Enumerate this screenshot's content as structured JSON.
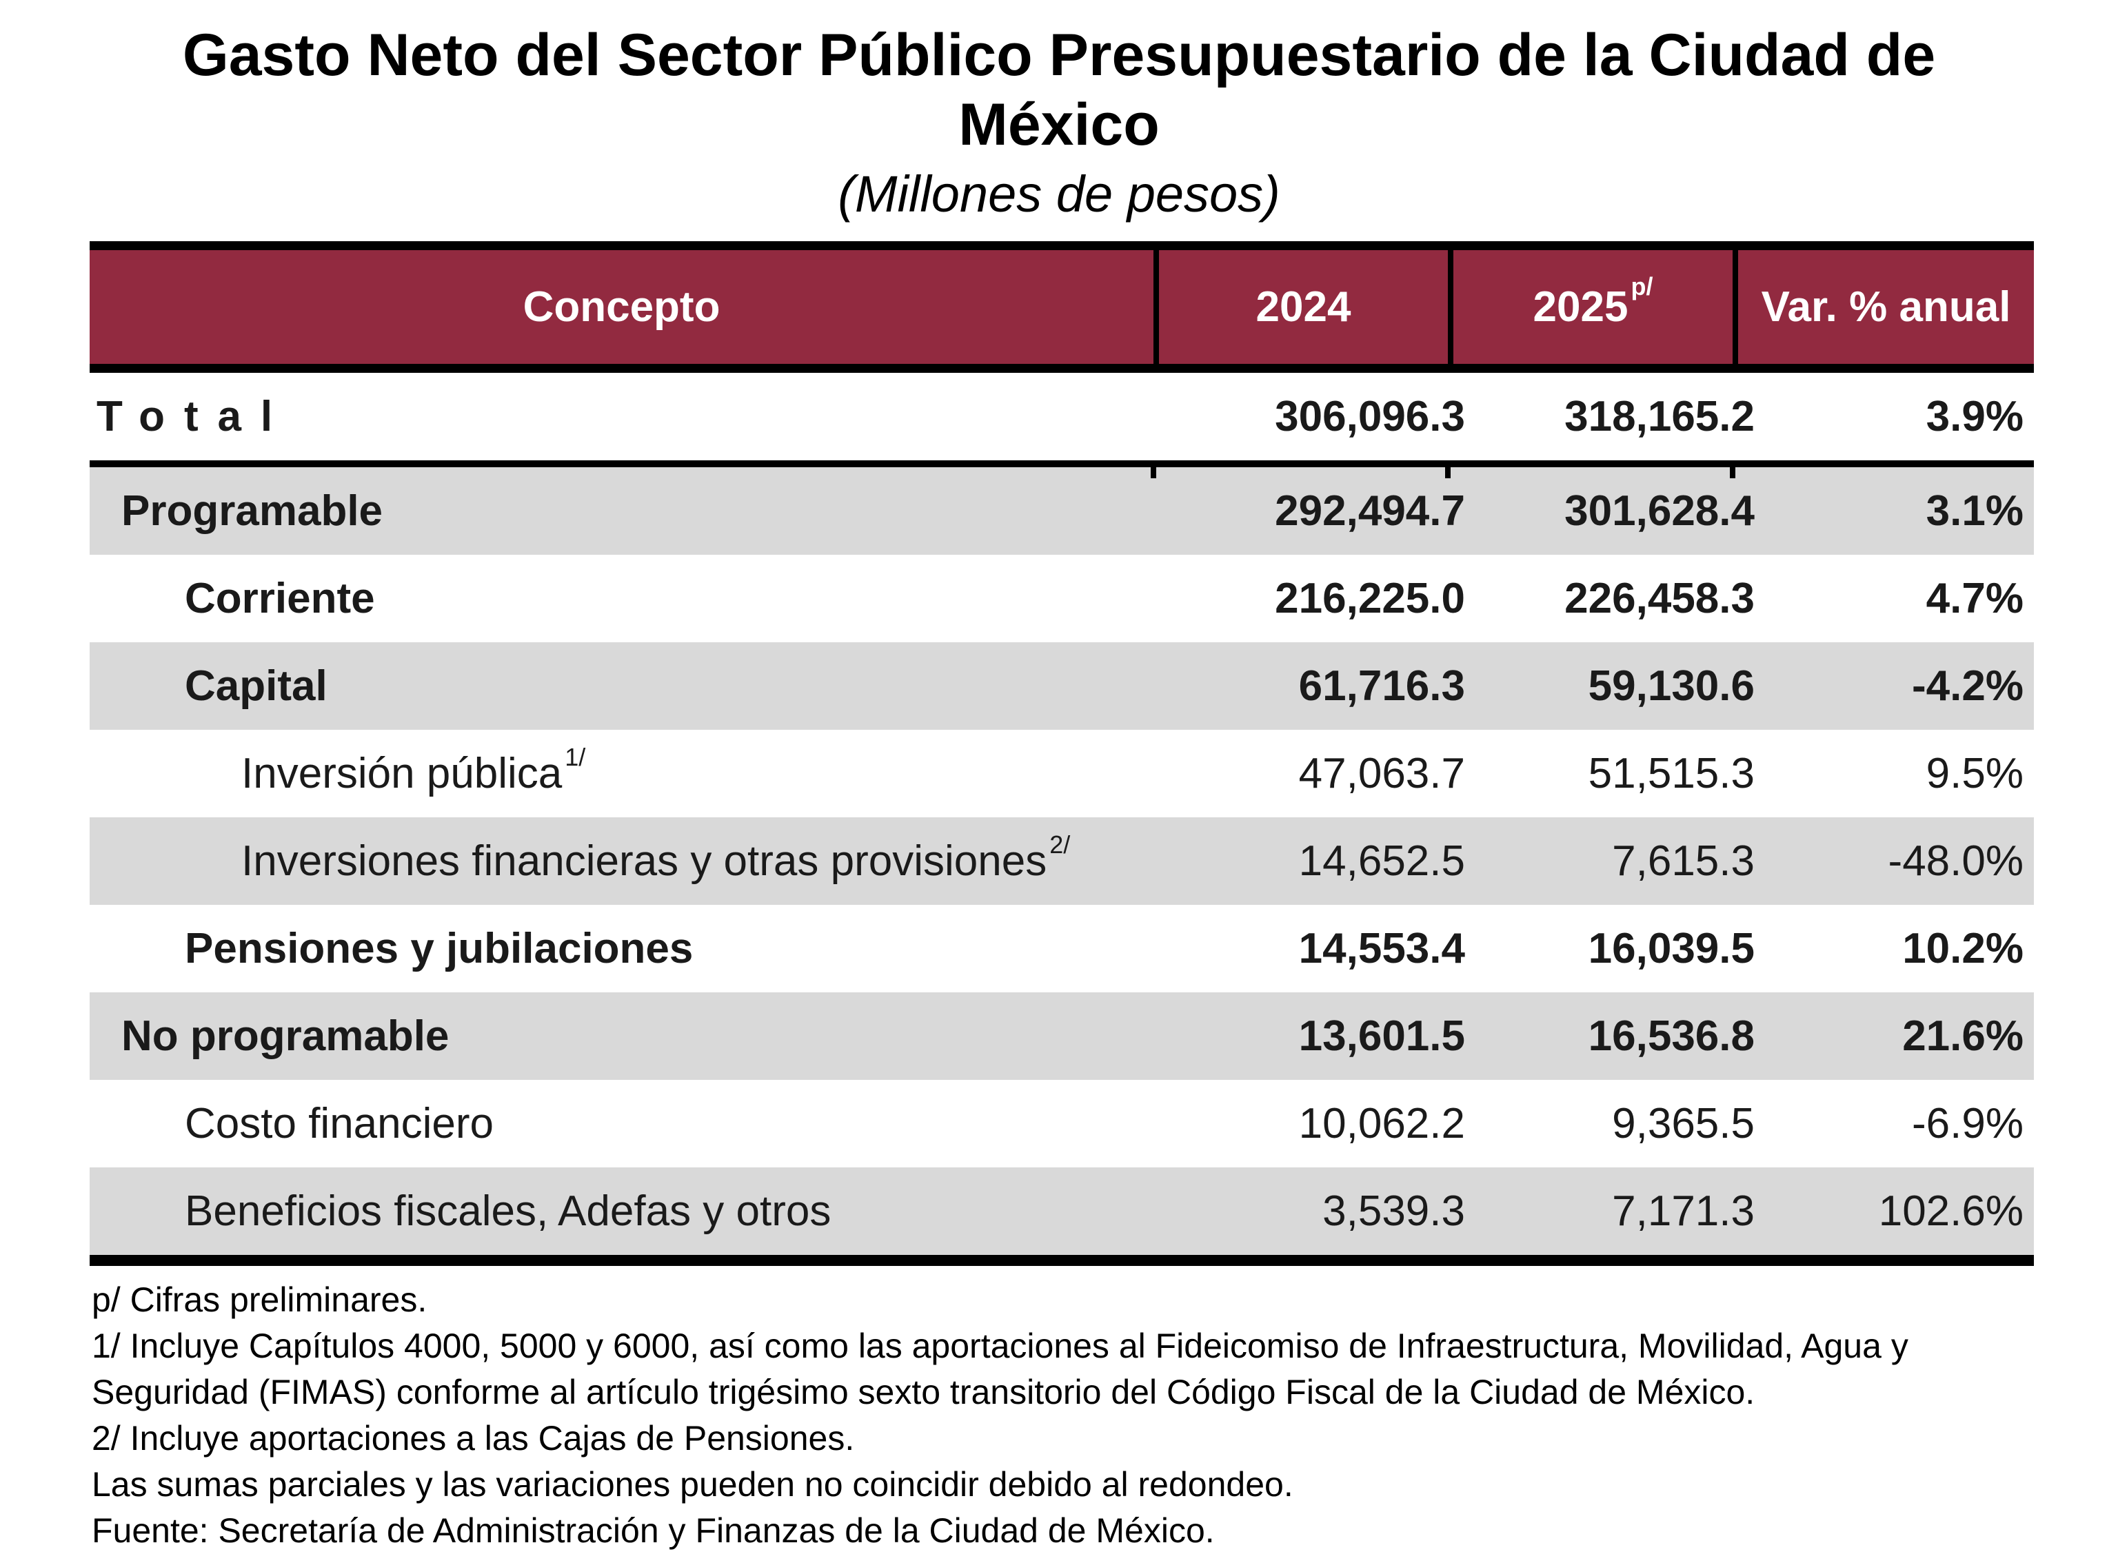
{
  "title": "Gasto Neto del Sector Público Presupuestario de la Ciudad de México",
  "subtitle": "(Millones de pesos)",
  "colors": {
    "header_bg": "#922A40",
    "header_text": "#FFFFFF",
    "row_alt_bg": "#D9D9D9",
    "border": "#000000"
  },
  "table": {
    "columns": {
      "concept": "Concepto",
      "y2024": "2024",
      "y2025": "2025",
      "y2025_sup": "p/",
      "var": "Var. % anual"
    },
    "rows": [
      {
        "label": "Total",
        "v2024": "306,096.3",
        "v2025": "318,165.2",
        "var": "3.9%"
      },
      {
        "label": "Programable",
        "v2024": "292,494.7",
        "v2025": "301,628.4",
        "var": "3.1%"
      },
      {
        "label": "Corriente",
        "v2024": "216,225.0",
        "v2025": "226,458.3",
        "var": "4.7%"
      },
      {
        "label": "Capital",
        "v2024": "61,716.3",
        "v2025": "59,130.6",
        "var": "-4.2%"
      },
      {
        "label": "Inversión pública",
        "sup": "1/",
        "v2024": "47,063.7",
        "v2025": "51,515.3",
        "var": "9.5%"
      },
      {
        "label": "Inversiones financieras y otras provisiones",
        "sup": "2/",
        "v2024": "14,652.5",
        "v2025": "7,615.3",
        "var": "-48.0%"
      },
      {
        "label": "Pensiones y jubilaciones",
        "v2024": "14,553.4",
        "v2025": "16,039.5",
        "var": "10.2%"
      },
      {
        "label": "No programable",
        "v2024": "13,601.5",
        "v2025": "16,536.8",
        "var": "21.6%"
      },
      {
        "label": "Costo financiero",
        "v2024": "10,062.2",
        "v2025": "9,365.5",
        "var": "-6.9%"
      },
      {
        "label": "Beneficios fiscales, Adefas y otros",
        "v2024": "3,539.3",
        "v2025": "7,171.3",
        "var": "102.6%"
      }
    ]
  },
  "footnotes": [
    "p/ Cifras preliminares.",
    "1/ Incluye Capítulos 4000, 5000 y 6000, así como las aportaciones al Fideicomiso de Infraestructura, Movilidad, Agua y Seguridad (FIMAS) conforme al artículo trigésimo sexto transitorio del Código Fiscal de la Ciudad de México.",
    "2/ Incluye aportaciones a las Cajas de Pensiones.",
    "Las sumas parciales y las variaciones pueden no coincidir debido al redondeo.",
    "Fuente: Secretaría de Administración y Finanzas de la Ciudad de México."
  ]
}
